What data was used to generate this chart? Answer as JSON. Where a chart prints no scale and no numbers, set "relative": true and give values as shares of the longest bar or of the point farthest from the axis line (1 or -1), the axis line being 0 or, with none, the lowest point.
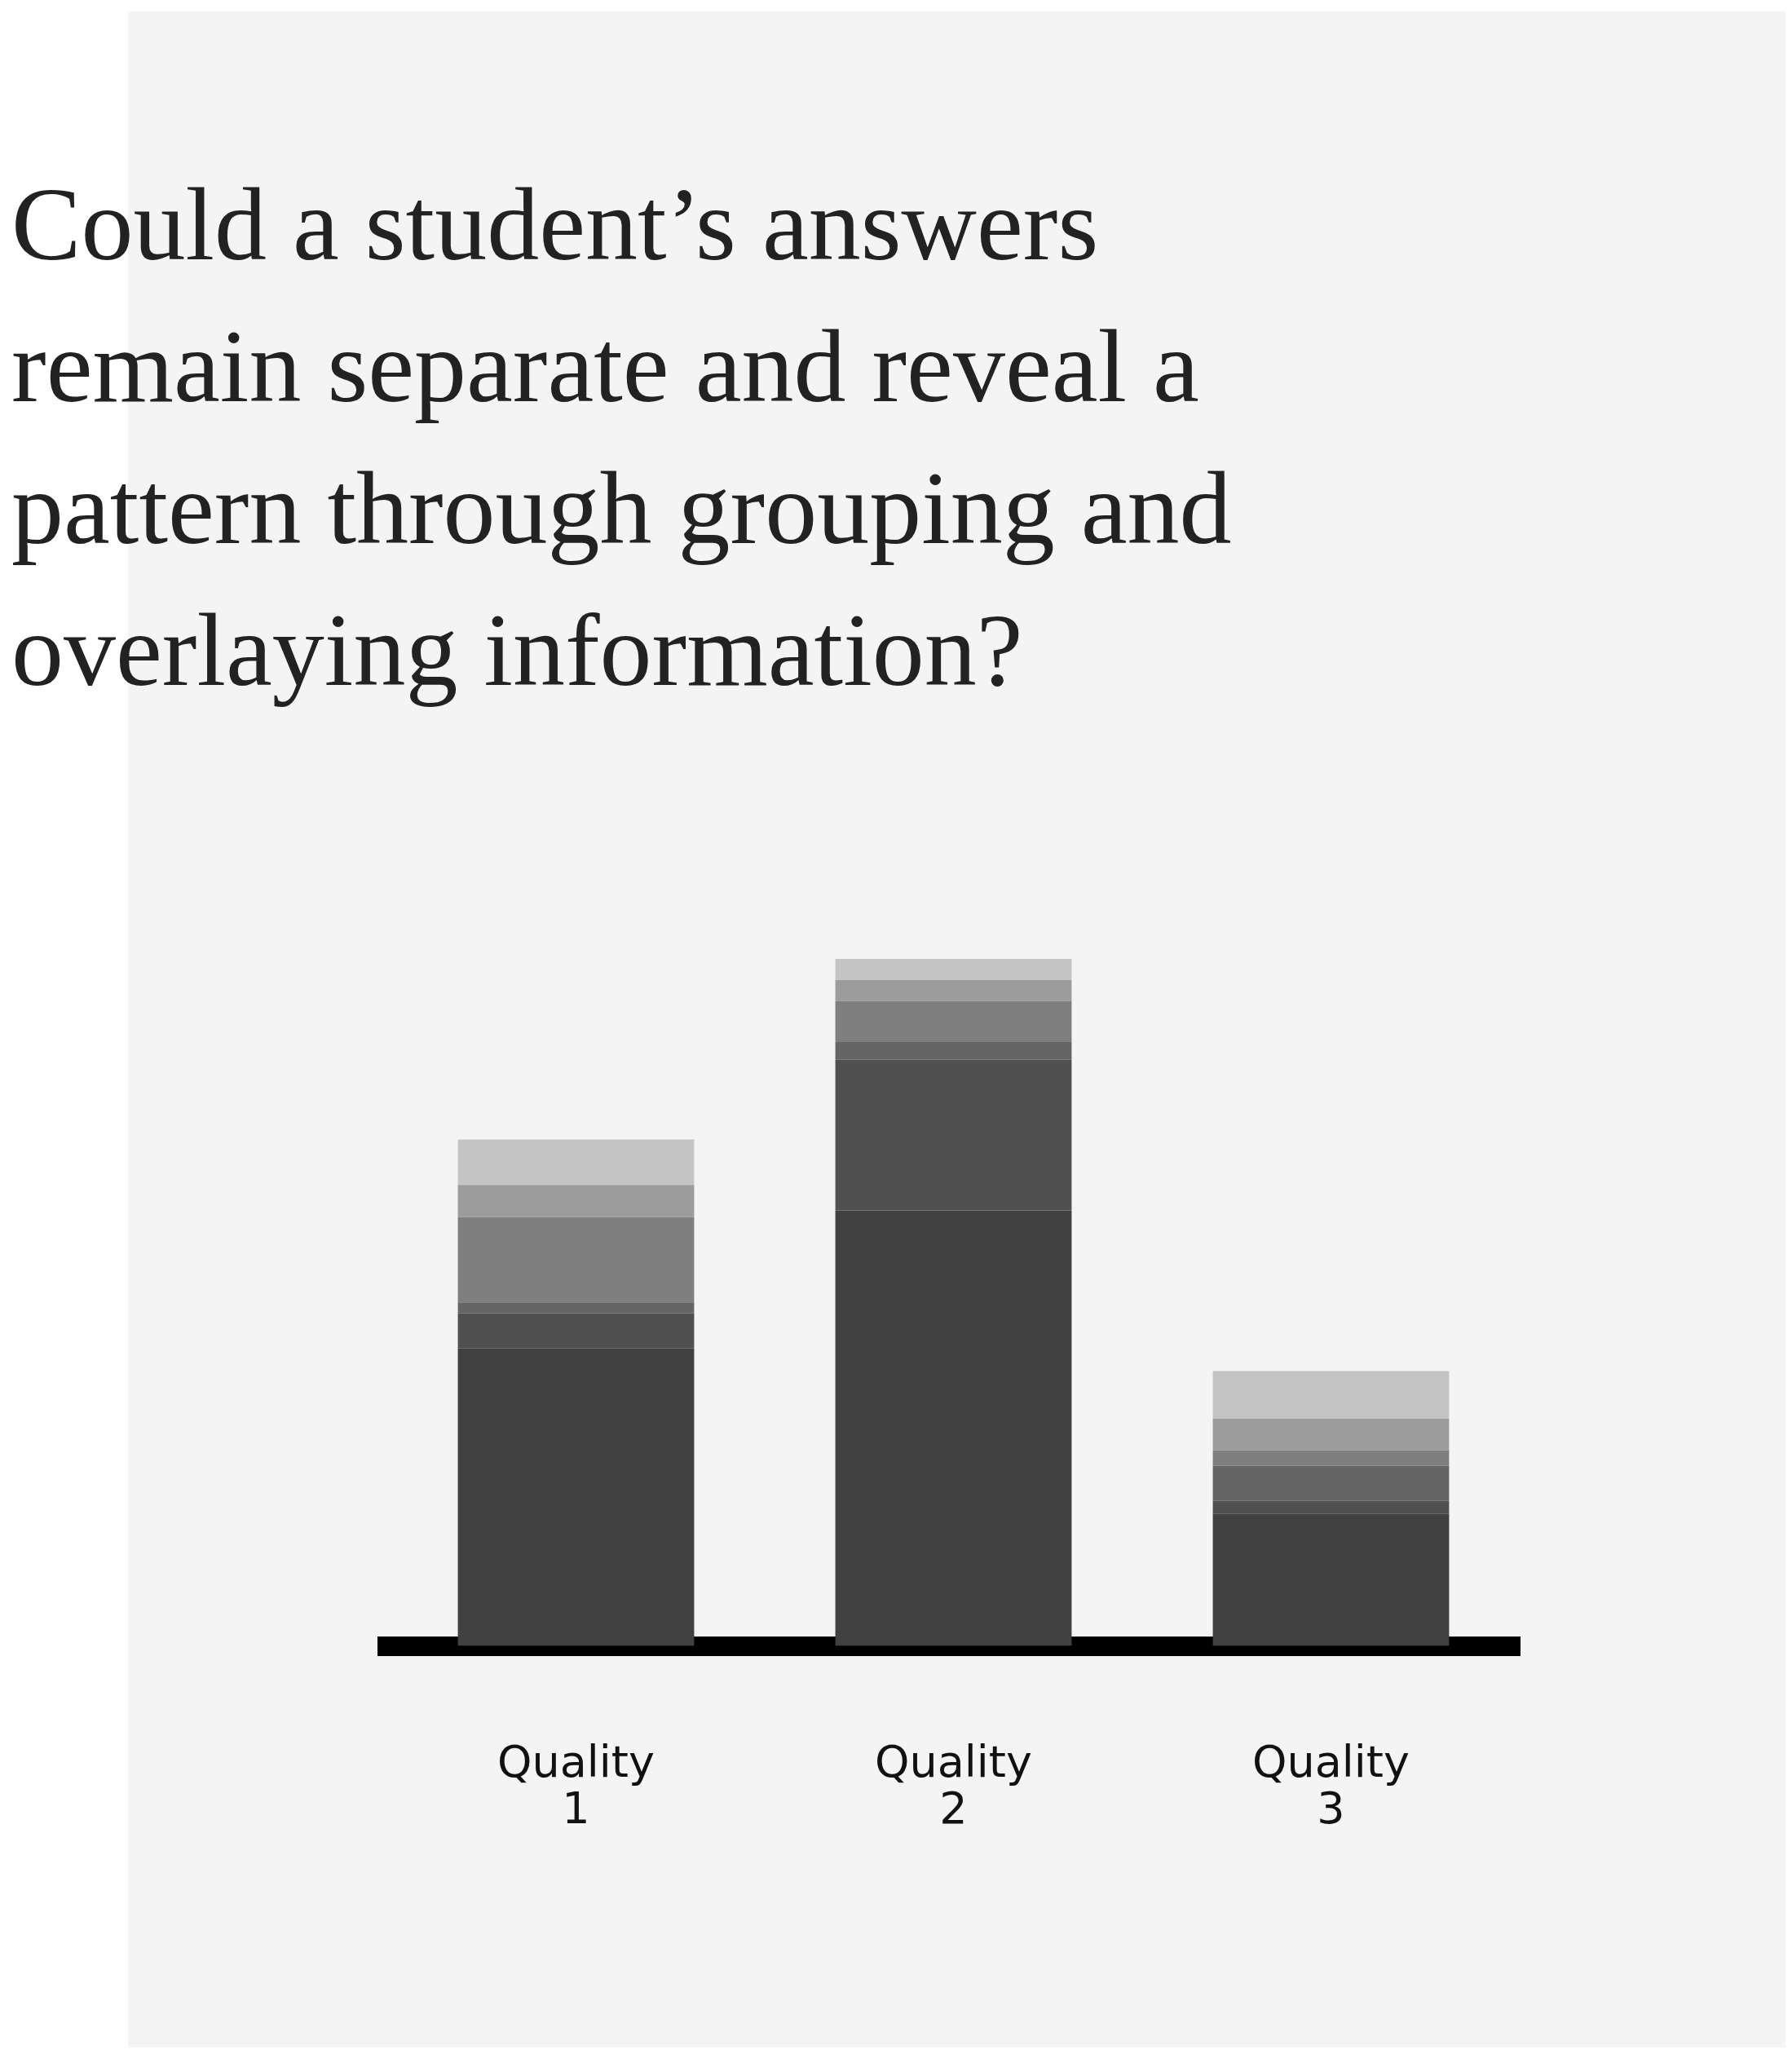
{
  "chart_data": {
    "type": "bar",
    "title": "Could a student’s answers remain separate and reveal a pattern through grouping and overlaying information?",
    "categories": [
      "Quality 1",
      "Quality 2",
      "Quality 3"
    ],
    "stacked": true,
    "relative": true,
    "legend": false,
    "grid": false,
    "series": [
      {
        "color": "#404040",
        "values": [
          0.433,
          0.634,
          0.192
        ]
      },
      {
        "color": "#505050",
        "values": [
          0.051,
          0.219,
          0.019
        ]
      },
      {
        "color": "#656565",
        "values": [
          0.016,
          0.026,
          0.051
        ]
      },
      {
        "color": "#7f7f7f",
        "values": [
          0.124,
          0.06,
          0.023
        ]
      },
      {
        "color": "#9c9c9c",
        "values": [
          0.047,
          0.03,
          0.046
        ]
      },
      {
        "color": "#c4c4c4",
        "values": [
          0.066,
          0.031,
          0.069
        ]
      }
    ]
  }
}
